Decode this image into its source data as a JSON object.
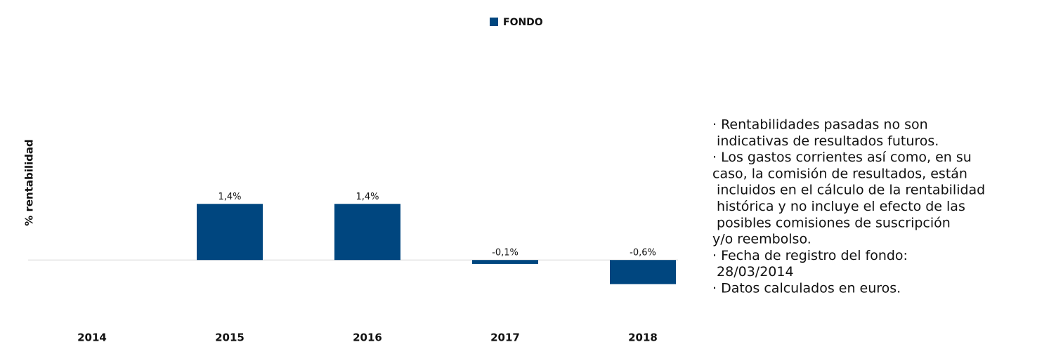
{
  "chart_data": {
    "type": "bar",
    "legend": "FONDO",
    "y_label": "% rentabilidad",
    "categories": [
      "2014",
      "2015",
      "2016",
      "2017",
      "2018"
    ],
    "values": [
      null,
      1.4,
      1.4,
      -0.1,
      -0.6
    ],
    "value_labels": [
      null,
      "1,4%",
      "1,4%",
      "-0,1%",
      "-0,6%"
    ],
    "color": "#00467f",
    "ylim": [
      -1.1,
      2.0
    ],
    "notes": [
      "· Rentabilidades pasadas no son",
      " indicativas de resultados futuros.",
      "· Los gastos corrientes así como, en su",
      "caso, la comisión de resultados, están",
      " incluidos en el cálculo de la rentabilidad",
      " histórica y no incluye el efecto de las",
      " posibles comisiones de suscripción",
      "y/o reembolso.",
      "· Fecha de registro del fondo:",
      " 28/03/2014",
      "· Datos calculados en euros."
    ]
  }
}
